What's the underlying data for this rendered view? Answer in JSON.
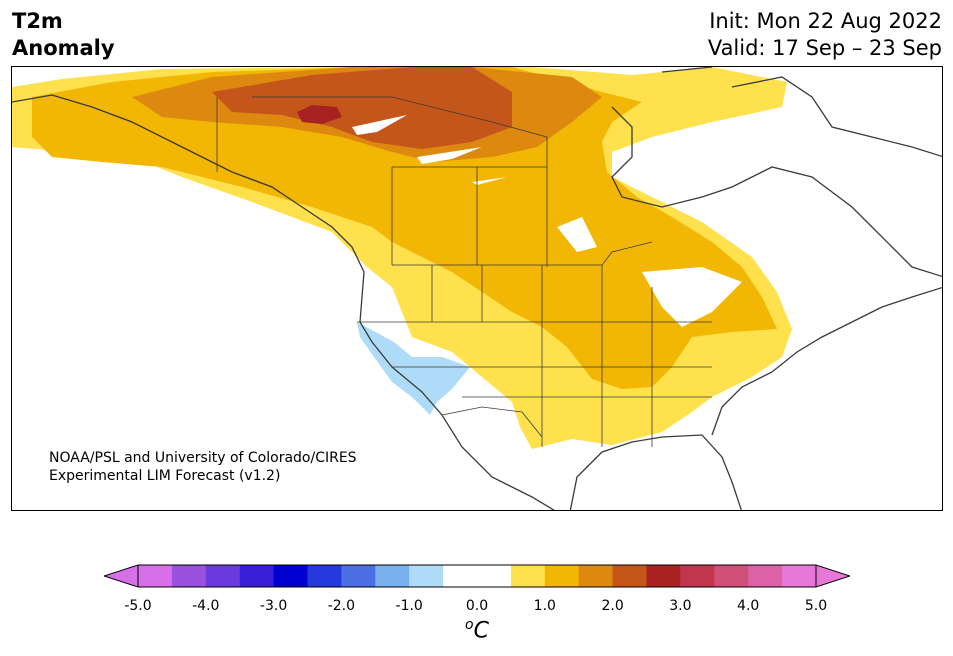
{
  "title": {
    "line1": "T2m",
    "line2": "Anomaly"
  },
  "dates": {
    "init": "Init: Mon 22 Aug 2022",
    "valid": "Valid: 17 Sep – 23 Sep"
  },
  "credit": {
    "line1": "NOAA/PSL and University of Colorado/CIRES",
    "line2": "Experimental LIM Forecast (v1.2)"
  },
  "colorbar": {
    "ticks": [
      "-5.0",
      "-4.0",
      "-3.0",
      "-2.0",
      "-1.0",
      "0.0",
      "1.0",
      "2.0",
      "3.0",
      "4.0",
      "5.0"
    ],
    "unit_base": "C",
    "unit_sup": "o",
    "colors": [
      "#d76fe8",
      "#9a52de",
      "#6b3adc",
      "#3a1fd8",
      "#0000d0",
      "#2438dc",
      "#4c70e4",
      "#78b0f0",
      "#aedcf8",
      "#ffffff",
      "#ffffff",
      "#fee14c",
      "#f2b705",
      "#dd880f",
      "#c4561a",
      "#a92222",
      "#c1364d",
      "#d0507a",
      "#dd61a7",
      "#e878d8"
    ],
    "under_color": "#d76fe8",
    "over_color": "#e878d8"
  },
  "legend_colors": {
    "light_blue": "#aedcf8",
    "yellow": "#fee14c",
    "gold": "#f2b705",
    "orange": "#dd880f",
    "dark_orange": "#c4561a",
    "red": "#a92222"
  }
}
